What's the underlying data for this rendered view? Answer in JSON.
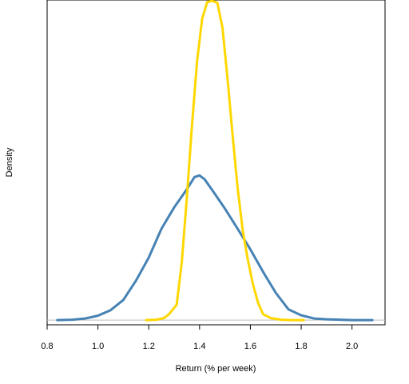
{
  "chart_data": {
    "type": "line",
    "title": "",
    "xlabel": "Return (% per week)",
    "ylabel": "Density",
    "xlim": [
      0.8,
      2.13
    ],
    "ylim": [
      -0.12,
      8.1
    ],
    "x_ticks": [
      0.8,
      1.0,
      1.2,
      1.4,
      1.6,
      1.8,
      2.0
    ],
    "x_tick_labels": [
      "0.8",
      "1.0",
      "1.2",
      "1.4",
      "1.6",
      "1.8",
      "2.0"
    ],
    "y_ticks_shown": false,
    "baseline": 0,
    "grid": false,
    "legend": "none",
    "series": [
      {
        "color": "#4682B4",
        "points": [
          [
            0.84,
            0.0
          ],
          [
            0.9,
            0.01
          ],
          [
            0.95,
            0.04
          ],
          [
            1.0,
            0.11
          ],
          [
            1.05,
            0.25
          ],
          [
            1.1,
            0.51
          ],
          [
            1.15,
            1.0
          ],
          [
            1.2,
            1.58
          ],
          [
            1.25,
            2.31
          ],
          [
            1.3,
            2.85
          ],
          [
            1.35,
            3.31
          ],
          [
            1.38,
            3.62
          ],
          [
            1.4,
            3.66
          ],
          [
            1.42,
            3.56
          ],
          [
            1.45,
            3.29
          ],
          [
            1.5,
            2.82
          ],
          [
            1.55,
            2.31
          ],
          [
            1.6,
            1.79
          ],
          [
            1.65,
            1.22
          ],
          [
            1.7,
            0.69
          ],
          [
            1.75,
            0.27
          ],
          [
            1.8,
            0.12
          ],
          [
            1.85,
            0.04
          ],
          [
            1.9,
            0.02
          ],
          [
            1.95,
            0.01
          ],
          [
            2.0,
            0.0
          ],
          [
            2.05,
            0.0
          ],
          [
            2.08,
            0.0
          ]
        ]
      },
      {
        "color": "#FFD700",
        "points": [
          [
            1.19,
            0.0
          ],
          [
            1.23,
            0.01
          ],
          [
            1.26,
            0.05
          ],
          [
            1.28,
            0.15
          ],
          [
            1.31,
            0.39
          ],
          [
            1.33,
            1.47
          ],
          [
            1.35,
            3.1
          ],
          [
            1.37,
            4.92
          ],
          [
            1.39,
            6.53
          ],
          [
            1.41,
            7.62
          ],
          [
            1.43,
            8.05
          ],
          [
            1.45,
            8.08
          ],
          [
            1.47,
            8.03
          ],
          [
            1.49,
            7.4
          ],
          [
            1.51,
            6.12
          ],
          [
            1.53,
            4.67
          ],
          [
            1.55,
            3.34
          ],
          [
            1.57,
            2.26
          ],
          [
            1.59,
            1.52
          ],
          [
            1.61,
            0.91
          ],
          [
            1.63,
            0.44
          ],
          [
            1.65,
            0.15
          ],
          [
            1.68,
            0.05
          ],
          [
            1.72,
            0.01
          ],
          [
            1.76,
            0.0
          ],
          [
            1.81,
            0.0
          ]
        ]
      }
    ]
  }
}
